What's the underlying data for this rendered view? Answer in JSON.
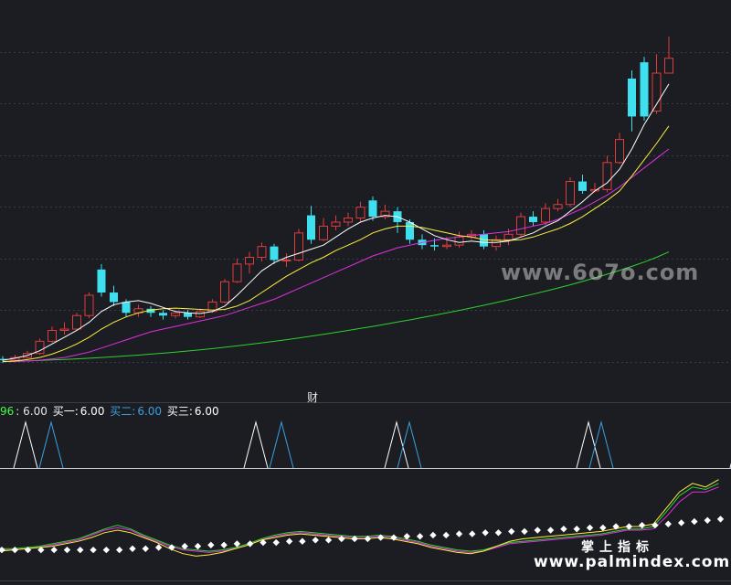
{
  "header": {
    "prefix": "96",
    "val0": ": 6.00",
    "label1": "买一:",
    "val1": "6.00",
    "label2": "买二:",
    "val2": "6.00",
    "label3": "买三:",
    "val3": "6.00"
  },
  "fin_label": "财",
  "watermark": {
    "mid": "www.6o7o.com",
    "cn": "掌上指标",
    "url": "www.palmindex.com"
  },
  "colors": {
    "bg": "#1b1d22",
    "up": "#e03c3c",
    "down": "#3ee0f0",
    "ma5": "#ffffff",
    "ma10": "#ffef40",
    "ma20": "#e030e0",
    "ma60": "#30d030",
    "buy1": "#ffffff",
    "buy2": "#3aa0e0",
    "hdr_green": "#40ff40",
    "hdr_blue": "#3aa0e0"
  },
  "chart_data": [
    {
      "type": "candlestick",
      "price_range": [
        5.5,
        30.0
      ],
      "candles": [
        [
          6.2,
          6.1,
          6.4,
          5.9
        ],
        [
          6.1,
          6.3,
          6.5,
          6.0
        ],
        [
          6.3,
          6.6,
          6.8,
          6.2
        ],
        [
          6.6,
          7.5,
          7.7,
          6.5
        ],
        [
          7.5,
          8.3,
          8.6,
          7.4
        ],
        [
          8.3,
          8.4,
          8.9,
          8.0
        ],
        [
          8.4,
          9.4,
          9.6,
          8.3
        ],
        [
          9.4,
          10.9,
          11.1,
          9.2
        ],
        [
          12.8,
          11.1,
          13.2,
          10.8
        ],
        [
          11.1,
          10.4,
          11.6,
          10.1
        ],
        [
          10.4,
          9.6,
          10.6,
          9.3
        ],
        [
          9.6,
          9.9,
          10.2,
          9.3
        ],
        [
          9.9,
          9.6,
          10.1,
          9.3
        ],
        [
          9.6,
          9.4,
          9.8,
          9.1
        ],
        [
          9.4,
          9.6,
          9.7,
          9.2
        ],
        [
          9.6,
          9.3,
          9.8,
          9.1
        ],
        [
          9.3,
          9.7,
          9.9,
          9.2
        ],
        [
          9.7,
          10.4,
          10.6,
          9.6
        ],
        [
          10.4,
          11.9,
          12.1,
          10.3
        ],
        [
          11.9,
          13.2,
          13.6,
          11.8
        ],
        [
          13.2,
          13.7,
          14.1,
          12.5
        ],
        [
          13.7,
          14.5,
          14.8,
          13.4
        ],
        [
          14.5,
          13.5,
          14.7,
          13.2
        ],
        [
          13.5,
          13.5,
          14.0,
          13.0
        ],
        [
          13.5,
          15.5,
          15.8,
          13.4
        ],
        [
          16.8,
          15.0,
          17.5,
          14.7
        ],
        [
          15.0,
          16.0,
          16.6,
          14.9
        ],
        [
          16.0,
          16.3,
          16.8,
          15.7
        ],
        [
          16.3,
          16.6,
          17.0,
          16.0
        ],
        [
          16.6,
          17.4,
          17.8,
          16.3
        ],
        [
          17.9,
          16.7,
          18.2,
          16.4
        ],
        [
          16.7,
          17.1,
          17.6,
          16.5
        ],
        [
          17.1,
          16.3,
          17.4,
          15.5
        ],
        [
          16.3,
          15.0,
          16.5,
          14.7
        ],
        [
          15.0,
          14.6,
          15.4,
          14.3
        ],
        [
          14.6,
          14.5,
          15.1,
          14.2
        ],
        [
          14.5,
          14.6,
          15.2,
          14.3
        ],
        [
          14.6,
          15.2,
          15.6,
          14.4
        ],
        [
          15.2,
          15.4,
          15.7,
          15.0
        ],
        [
          15.4,
          14.5,
          15.7,
          14.3
        ],
        [
          14.5,
          15.0,
          15.3,
          14.2
        ],
        [
          15.0,
          15.4,
          15.8,
          14.6
        ],
        [
          15.4,
          16.7,
          17.0,
          15.2
        ],
        [
          16.7,
          16.3,
          17.1,
          16.0
        ],
        [
          16.3,
          17.3,
          17.7,
          16.1
        ],
        [
          17.3,
          17.6,
          18.0,
          17.1
        ],
        [
          17.6,
          19.3,
          19.6,
          17.4
        ],
        [
          19.3,
          18.6,
          19.8,
          18.4
        ],
        [
          18.6,
          18.7,
          19.2,
          18.5
        ],
        [
          18.7,
          20.7,
          21.2,
          18.5
        ],
        [
          20.7,
          22.4,
          22.9,
          20.6
        ],
        [
          26.9,
          24.1,
          27.5,
          23.0
        ],
        [
          28.1,
          24.1,
          28.5,
          23.8
        ],
        [
          24.5,
          27.3,
          28.7,
          24.3
        ],
        [
          27.3,
          28.4,
          30.0,
          28.0
        ]
      ],
      "ma5": [
        6.1,
        6.25,
        6.45,
        6.8,
        7.3,
        7.8,
        8.3,
        8.9,
        9.7,
        10.2,
        10.4,
        10.5,
        10.3,
        10.0,
        9.7,
        9.6,
        9.55,
        9.7,
        10.1,
        10.9,
        11.8,
        12.7,
        13.3,
        13.7,
        14.0,
        14.3,
        14.6,
        15.2,
        15.8,
        16.3,
        16.6,
        16.8,
        16.7,
        16.3,
        15.8,
        15.3,
        15.0,
        14.8,
        14.9,
        14.8,
        14.8,
        14.9,
        15.2,
        15.5,
        16.0,
        16.4,
        17.1,
        17.8,
        18.6,
        19.2,
        20.2,
        21.7,
        23.5,
        25.0,
        26.5
      ],
      "ma10": [
        6.0,
        6.05,
        6.15,
        6.3,
        6.55,
        6.9,
        7.3,
        7.8,
        8.4,
        8.9,
        9.3,
        9.6,
        9.8,
        9.9,
        9.95,
        9.9,
        9.85,
        9.8,
        9.85,
        10.1,
        10.5,
        11.1,
        11.7,
        12.3,
        12.8,
        13.3,
        13.7,
        14.2,
        14.6,
        15.0,
        15.5,
        15.8,
        16.0,
        16.0,
        15.9,
        15.7,
        15.5,
        15.3,
        15.2,
        15.0,
        14.95,
        14.95,
        15.0,
        15.2,
        15.5,
        15.8,
        16.2,
        16.7,
        17.3,
        17.9,
        18.6,
        19.7,
        20.9,
        22.1,
        23.4
      ],
      "ma20": [
        6.0,
        6.0,
        6.05,
        6.1,
        6.2,
        6.3,
        6.5,
        6.7,
        7.0,
        7.3,
        7.6,
        7.9,
        8.2,
        8.4,
        8.6,
        8.8,
        9.0,
        9.2,
        9.4,
        9.7,
        10.0,
        10.3,
        10.6,
        11.0,
        11.4,
        11.8,
        12.2,
        12.6,
        13.0,
        13.4,
        13.8,
        14.1,
        14.4,
        14.6,
        14.8,
        14.95,
        15.1,
        15.2,
        15.3,
        15.4,
        15.5,
        15.6,
        15.8,
        16.0,
        16.2,
        16.5,
        16.9,
        17.3,
        17.8,
        18.3,
        18.9,
        19.6,
        20.3,
        21.0,
        21.7
      ],
      "ma60": [
        6.0,
        6.02,
        6.05,
        6.08,
        6.12,
        6.16,
        6.2,
        6.25,
        6.3,
        6.36,
        6.42,
        6.48,
        6.55,
        6.62,
        6.7,
        6.78,
        6.87,
        6.96,
        7.06,
        7.16,
        7.27,
        7.38,
        7.5,
        7.62,
        7.75,
        7.88,
        8.02,
        8.16,
        8.3,
        8.45,
        8.6,
        8.76,
        8.92,
        9.08,
        9.25,
        9.42,
        9.6,
        9.78,
        9.97,
        10.16,
        10.36,
        10.56,
        10.77,
        10.98,
        11.2,
        11.43,
        11.67,
        11.92,
        12.18,
        12.45,
        12.73,
        13.03,
        13.35,
        13.7,
        14.1
      ]
    },
    {
      "type": "signal",
      "series": [
        {
          "name": "买一",
          "peaks_at": [
            1,
            19,
            30,
            45,
            57
          ]
        },
        {
          "name": "买二",
          "peaks_at": [
            3,
            21,
            31,
            46
          ]
        }
      ]
    },
    {
      "type": "line",
      "ylim": [
        0,
        100
      ],
      "lines": [
        [
          22,
          22,
          23,
          24,
          26,
          28,
          30,
          34,
          38,
          41,
          38,
          33,
          29,
          25,
          22,
          21,
          20,
          21,
          23,
          26,
          30,
          33,
          35,
          36,
          35,
          34,
          33,
          32,
          32,
          33,
          32,
          30,
          28,
          25,
          23,
          21,
          20,
          21,
          24,
          27,
          28,
          29,
          30,
          31,
          32,
          33,
          34,
          36,
          38,
          38,
          40,
          52,
          65,
          72,
          70,
          75
        ],
        [
          21,
          21,
          22,
          23,
          25,
          27,
          29,
          33,
          37,
          39,
          37,
          32,
          28,
          24,
          21,
          20,
          19,
          20,
          22,
          25,
          29,
          32,
          34,
          35,
          34,
          33,
          32,
          31,
          31,
          32,
          31,
          29,
          27,
          24,
          22,
          20,
          19,
          20,
          23,
          26,
          27,
          28,
          29,
          30,
          31,
          32,
          33,
          35,
          37,
          37,
          38,
          48,
          60,
          68,
          68,
          72
        ],
        [
          20,
          21,
          22,
          23,
          24,
          26,
          28,
          31,
          35,
          37,
          35,
          31,
          27,
          22,
          18,
          16,
          17,
          19,
          22,
          25,
          29,
          31,
          33,
          34,
          33,
          32,
          31,
          30,
          30,
          31,
          30,
          28,
          26,
          23,
          21,
          19,
          18,
          20,
          24,
          28,
          30,
          31,
          32,
          33,
          34,
          35,
          36,
          38,
          40,
          40,
          42,
          55,
          68,
          75,
          72,
          78
        ]
      ],
      "dots": [
        21,
        21,
        21,
        21,
        21,
        21,
        21,
        21,
        21,
        21,
        22,
        22,
        23,
        23,
        24,
        24,
        25,
        25,
        26,
        26,
        27,
        27,
        28,
        28,
        29,
        29,
        30,
        30,
        30,
        31,
        31,
        32,
        32,
        33,
        33,
        34,
        34,
        35,
        35,
        36,
        36,
        37,
        37,
        38,
        38,
        39,
        39,
        40,
        40,
        41,
        41,
        42,
        43,
        44,
        45,
        46
      ]
    }
  ]
}
